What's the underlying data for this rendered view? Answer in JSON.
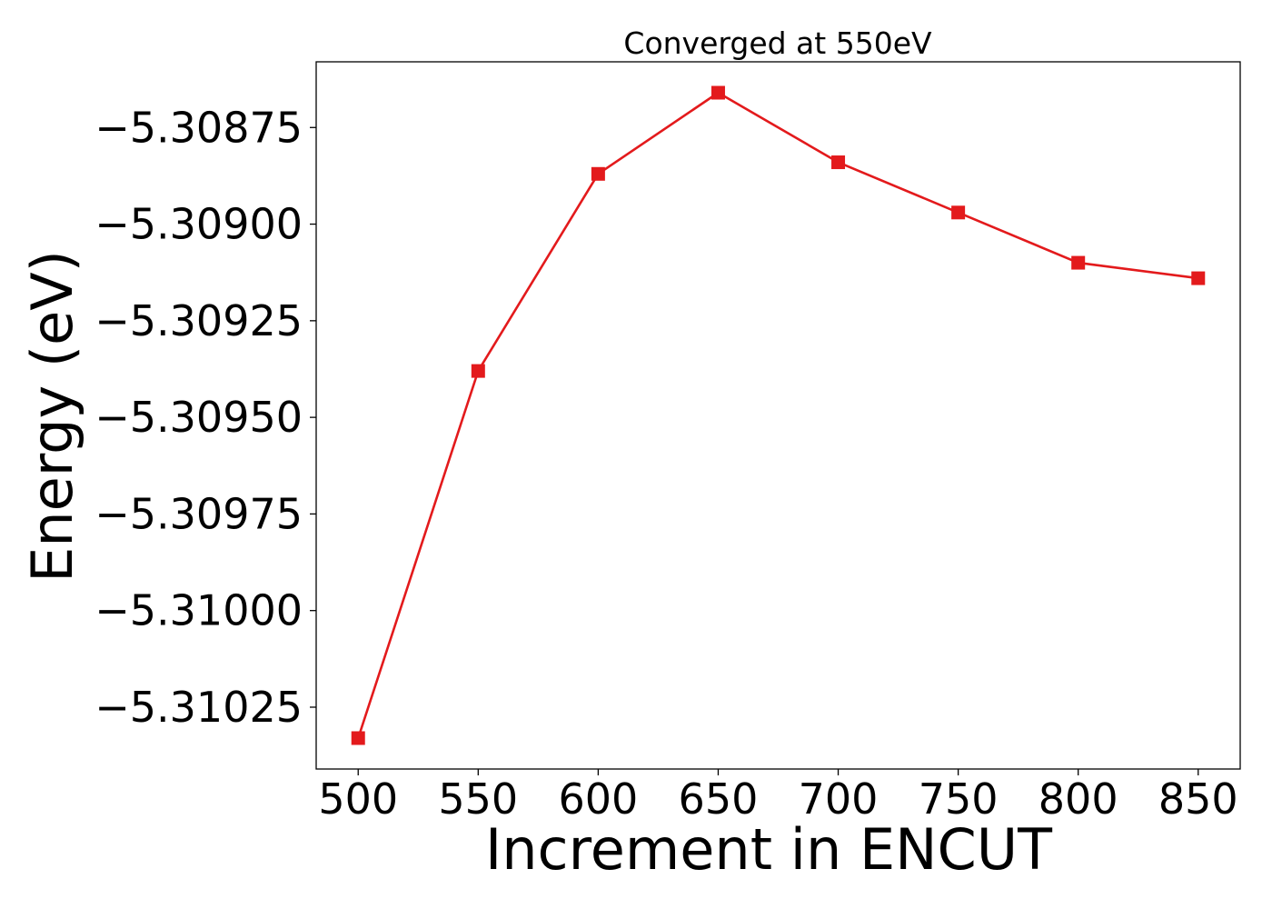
{
  "chart_data": {
    "type": "line",
    "title": "Converged at 550eV",
    "xlabel": "Increment in ENCUT",
    "ylabel": "Energy (eV)",
    "x": [
      500,
      550,
      600,
      650,
      700,
      750,
      800,
      850
    ],
    "series": [
      {
        "values": [
          -5.31033,
          -5.30938,
          -5.30887,
          -5.30866,
          -5.30884,
          -5.30897,
          -5.3091,
          -5.30914
        ],
        "color": "#e31a1c",
        "marker": "square"
      }
    ],
    "xticks": [
      500,
      550,
      600,
      650,
      700,
      750,
      800,
      850
    ],
    "xtick_labels": [
      "500",
      "550",
      "600",
      "650",
      "700",
      "750",
      "800",
      "850"
    ],
    "yticks": [
      -5.30875,
      -5.309,
      -5.30925,
      -5.3095,
      -5.30975,
      -5.31,
      -5.31025
    ],
    "ytick_labels": [
      "−5.30875",
      "−5.30900",
      "−5.30925",
      "−5.30950",
      "−5.30975",
      "−5.31000",
      "−5.31025"
    ],
    "xlim": [
      482.5,
      867.5
    ],
    "ylim": [
      -5.31041,
      -5.30858
    ],
    "grid": false,
    "legend": "none"
  }
}
